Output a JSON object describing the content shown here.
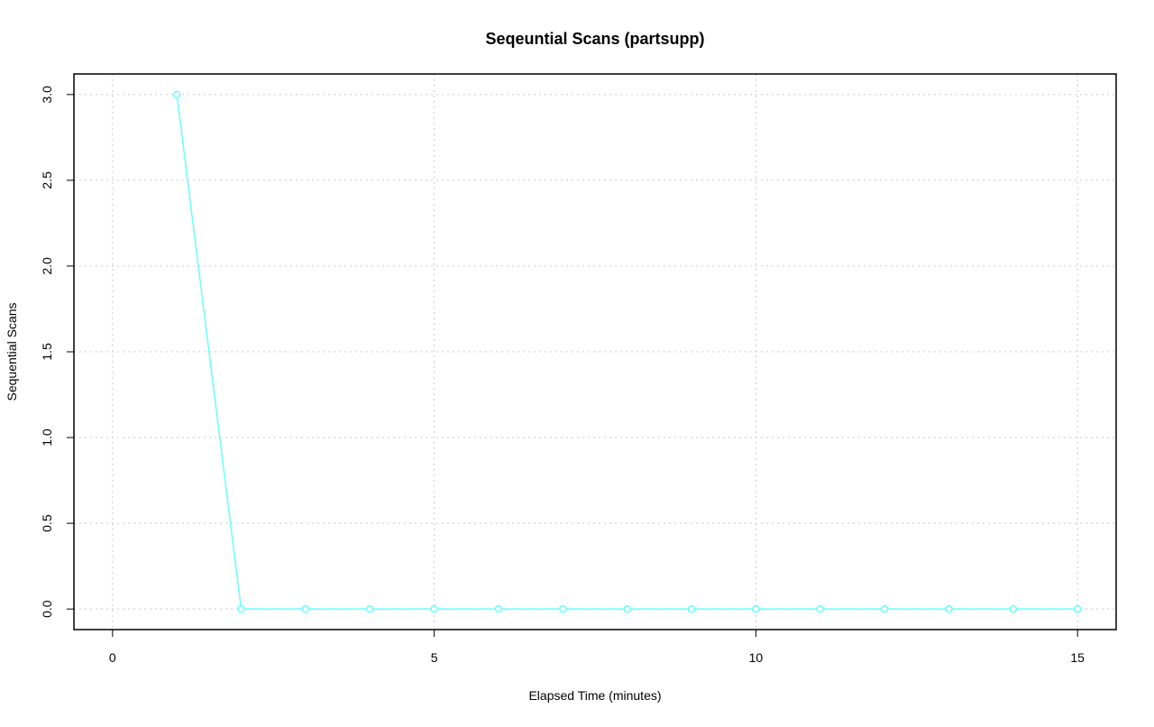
{
  "chart_data": {
    "type": "line",
    "title": "Seqeuntial Scans (partsupp)",
    "x_label": "Elapsed Time (minutes)",
    "y_label": "Sequential Scans",
    "x": [
      1,
      2,
      3,
      4,
      5,
      6,
      7,
      8,
      9,
      10,
      11,
      12,
      13,
      14,
      15
    ],
    "series": [
      {
        "name": "partsupp",
        "color": "#66ffff",
        "values": [
          3,
          0,
          0,
          0,
          0,
          0,
          0,
          0,
          0,
          0,
          0,
          0,
          0,
          0,
          0
        ]
      }
    ],
    "xlim": [
      -0.6,
      15.6
    ],
    "ylim": [
      -0.12,
      3.12
    ],
    "xticks": [
      0,
      5,
      10,
      15
    ],
    "yticks": [
      {
        "value": 0,
        "label": "0.0"
      },
      0.5,
      {
        "value": 1,
        "label": "1.0"
      },
      1.5,
      {
        "value": 2,
        "label": "2.0"
      },
      2.5,
      {
        "value": 3,
        "label": "3.0"
      }
    ],
    "grid": true
  }
}
